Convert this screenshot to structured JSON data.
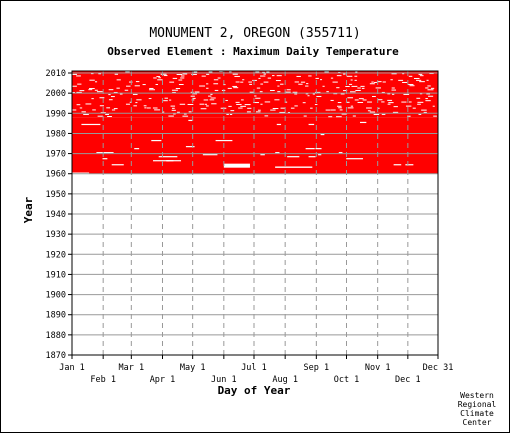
{
  "chart_data": {
    "type": "heatmap",
    "title": "MONUMENT 2, OREGON   (355711)",
    "subtitle": "Observed Element : Maximum Daily Temperature",
    "xlabel": "Day of Year",
    "ylabel": "Year",
    "xlim": [
      1,
      365
    ],
    "ylim": [
      1870,
      2011
    ],
    "grid": true,
    "data_color": "#ff0000",
    "y_ticks": [
      1870,
      1880,
      1890,
      1900,
      1910,
      1920,
      1930,
      1940,
      1950,
      1960,
      1970,
      1980,
      1990,
      2000,
      2010
    ],
    "x_ticks_top_row": [
      {
        "label": "Jan 1",
        "day": 1
      },
      {
        "label": "Mar 1",
        "day": 60
      },
      {
        "label": "May 1",
        "day": 121
      },
      {
        "label": "Jul 1",
        "day": 182
      },
      {
        "label": "Sep 1",
        "day": 244
      },
      {
        "label": "Nov 1",
        "day": 305
      },
      {
        "label": "Dec 31",
        "day": 365
      }
    ],
    "x_ticks_bottom_row": [
      {
        "label": "Feb 1",
        "day": 32
      },
      {
        "label": "Apr 1",
        "day": 91
      },
      {
        "label": "Jun 1",
        "day": 152
      },
      {
        "label": "Aug 1",
        "day": 213
      },
      {
        "label": "Oct 1",
        "day": 274
      },
      {
        "label": "Dec 1",
        "day": 335
      }
    ],
    "data_coverage": {
      "start_year": 1960,
      "end_year": 2010,
      "dense_period": [
        1960,
        1988
      ],
      "sparse_period": [
        1988,
        2010
      ]
    }
  },
  "credit": [
    "Western",
    "Regional",
    "Climate",
    "Center"
  ]
}
